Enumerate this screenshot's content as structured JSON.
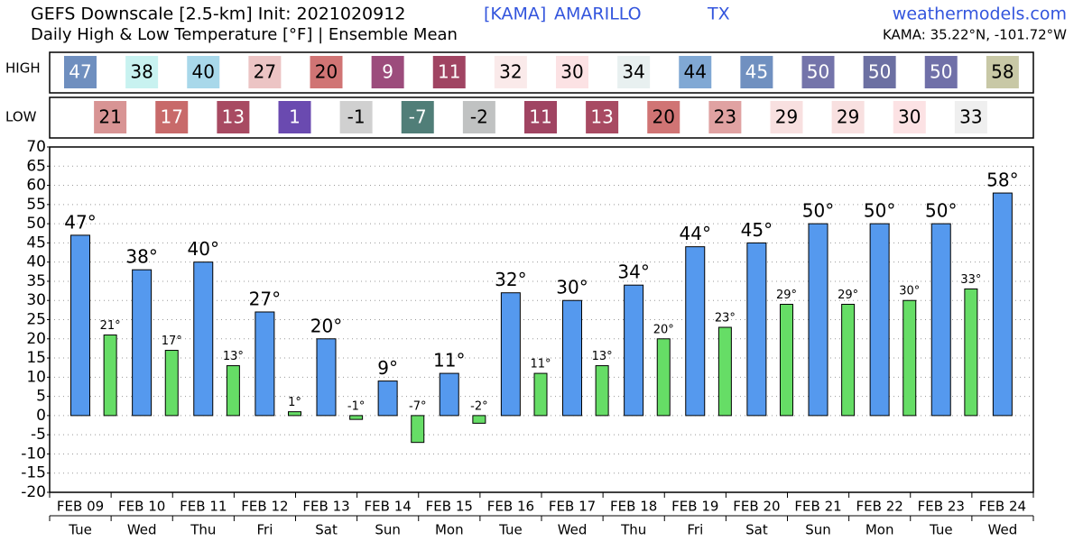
{
  "chart_data": {
    "type": "bar",
    "title": "GEFS Downscale [2.5-km] Init: 2021020912",
    "station_id": "[KAMA]",
    "station_name": "AMARILLO",
    "state": "TX",
    "source": "weathermodels.com",
    "subtitle": "Daily High & Low Temperature [°F] | Ensemble Mean",
    "location": "KAMA: 35.22°N, -101.72°W",
    "high_row_label": "HIGH",
    "low_row_label": "LOW",
    "categories": [
      "FEB 09",
      "FEB 10",
      "FEB 11",
      "FEB 12",
      "FEB 13",
      "FEB 14",
      "FEB 15",
      "FEB 16",
      "FEB 17",
      "FEB 18",
      "FEB 19",
      "FEB 20",
      "FEB 21",
      "FEB 22",
      "FEB 23",
      "FEB 24"
    ],
    "weekdays": [
      "Tue",
      "Wed",
      "Thu",
      "Fri",
      "Sat",
      "Sun",
      "Mon",
      "Tue",
      "Wed",
      "Thu",
      "Fri",
      "Sat",
      "Sun",
      "Mon",
      "Tue",
      "Wed"
    ],
    "series": [
      {
        "name": "HIGH",
        "color": "#5599ee",
        "values": [
          47,
          38,
          40,
          27,
          20,
          9,
          11,
          32,
          30,
          34,
          44,
          45,
          50,
          50,
          50,
          58
        ],
        "value_labels": [
          "47°",
          "38°",
          "40°",
          "27°",
          "20°",
          "9°",
          "11°",
          "32°",
          "30°",
          "34°",
          "44°",
          "45°",
          "50°",
          "50°",
          "50°",
          "58°"
        ],
        "cell_colors": [
          "#6f8fbf",
          "#c8f2f0",
          "#a8d8ea",
          "#ecc4c4",
          "#d07474",
          "#9c4c7c",
          "#a04462",
          "#faeaea",
          "#fce2e4",
          "#e8f0f0",
          "#80a8d4",
          "#7090c0",
          "#7474aa",
          "#6c70a2",
          "#7070a8",
          "#c8c8a6"
        ]
      },
      {
        "name": "LOW",
        "color": "#66dd66",
        "values": [
          21,
          17,
          13,
          1,
          -1,
          -7,
          -2,
          11,
          13,
          20,
          23,
          29,
          29,
          30,
          33,
          null
        ],
        "value_labels": [
          "21°",
          "17°",
          "13°",
          "1°",
          "-1°",
          "-7°",
          "-2°",
          "11°",
          "13°",
          "20°",
          "23°",
          "29°",
          "29°",
          "30°",
          "33°",
          null
        ],
        "cell_colors": [
          "#d89494",
          "#c86a6a",
          "#a84a62",
          "#6a4ab0",
          "#d0d0d0",
          "#507e78",
          "#c0c2c2",
          "#a04462",
          "#a84a62",
          "#d07474",
          "#e0a2a2",
          "#f8e0e0",
          "#f8e0e0",
          "#fce2e4",
          "#efefef",
          null
        ]
      }
    ],
    "ylim": [
      -20,
      70
    ],
    "yticks": [
      -20,
      -15,
      -10,
      -5,
      0,
      5,
      10,
      15,
      20,
      25,
      30,
      35,
      40,
      45,
      50,
      55,
      60,
      65,
      70
    ],
    "grid": true
  }
}
